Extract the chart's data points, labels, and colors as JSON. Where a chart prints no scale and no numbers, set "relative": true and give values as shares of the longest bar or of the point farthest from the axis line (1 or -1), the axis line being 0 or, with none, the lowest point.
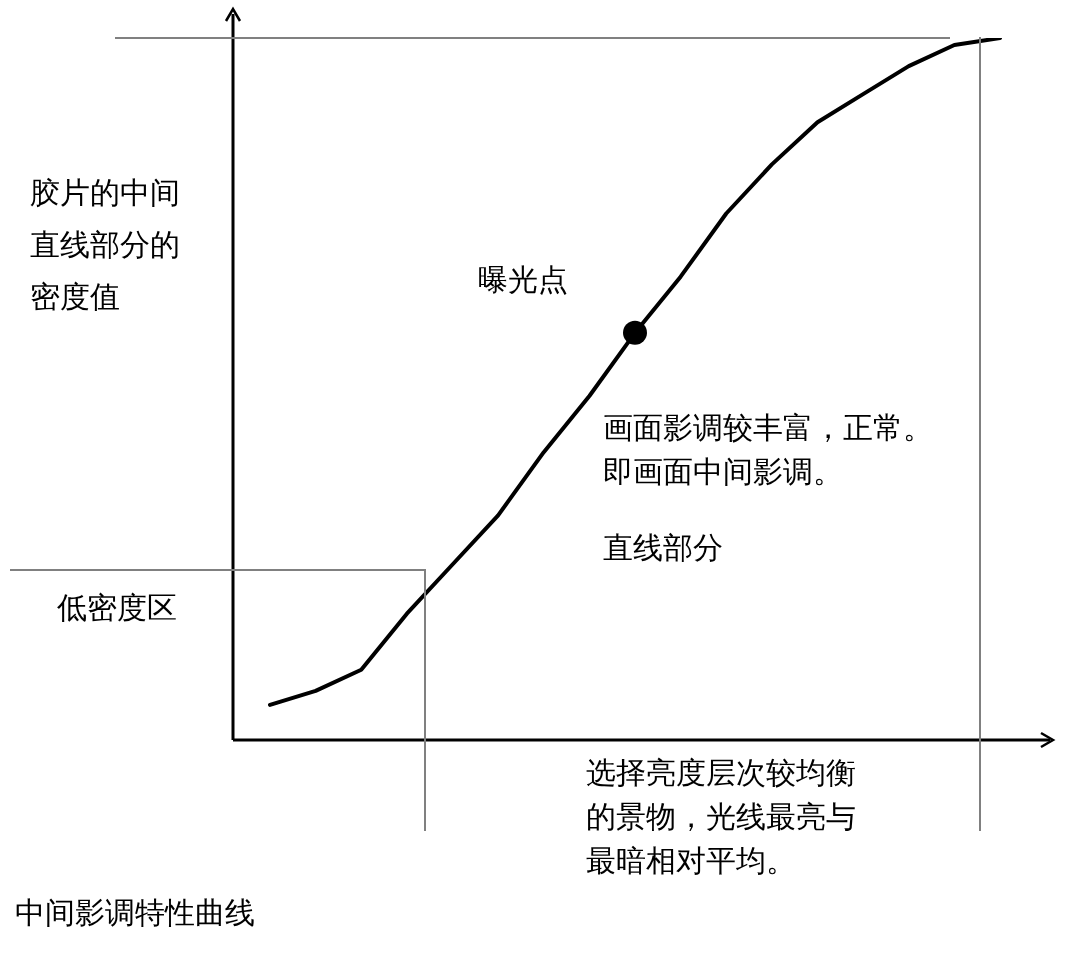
{
  "chart_data": {
    "type": "line",
    "relative": true,
    "title": "中间影调特性曲线",
    "ylabel": "胶片的中间直线部分的密度值",
    "xlabel": "选择亮度层次较均衡的景物，光线最亮与最暗相对平均。",
    "categories": [
      null,
      null,
      null,
      null,
      null,
      null,
      null,
      null,
      null,
      null,
      null,
      null,
      null,
      null,
      null,
      null,
      null
    ],
    "series": [
      {
        "color": "#000000",
        "values": [
          0.05,
          0.07,
          0.1,
          0.18,
          0.25,
          0.32,
          0.41,
          0.49,
          0.58,
          0.66,
          0.75,
          0.82,
          0.88,
          0.92,
          0.96,
          0.99,
          1
        ]
      }
    ],
    "annotations": [
      "曝光点",
      "画面影调较丰富，正常。即画面中间影调。",
      "直线部分",
      "低密度区"
    ],
    "marker": "none",
    "line_style": "solid"
  }
}
